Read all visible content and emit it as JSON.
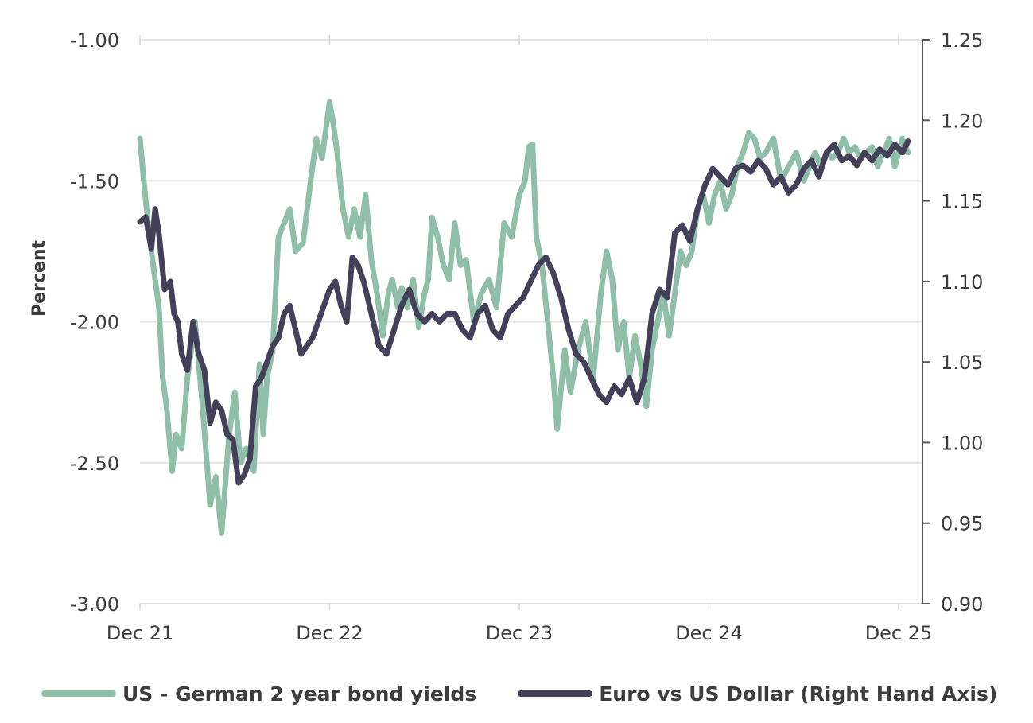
{
  "chart_data": {
    "type": "line",
    "title": "",
    "ylabel": "Percent",
    "ylabel_right": "",
    "xlabel": "",
    "x_ticks": [
      "Dec 21",
      "Dec 22",
      "Dec 23",
      "Dec 24",
      "Dec 25"
    ],
    "ylim_left": [
      -3.0,
      -1.0
    ],
    "ylim_right": [
      0.9,
      1.25
    ],
    "y_ticks_left": [
      "-1.00",
      "-1.50",
      "-2.00",
      "-2.50",
      "-3.00"
    ],
    "y_ticks_right": [
      "1.25",
      "1.20",
      "1.15",
      "1.10",
      "1.05",
      "1.00",
      "0.95",
      "0.90"
    ],
    "grid": true,
    "legend_position": "bottom",
    "x_domain": [
      0,
      4
    ],
    "series": [
      {
        "name": "US - German 2 year bond yields",
        "axis": "left",
        "color": "#8fbfa8",
        "x": [
          0.0,
          0.02,
          0.05,
          0.08,
          0.1,
          0.12,
          0.14,
          0.17,
          0.19,
          0.22,
          0.25,
          0.29,
          0.33,
          0.37,
          0.4,
          0.43,
          0.47,
          0.5,
          0.53,
          0.56,
          0.6,
          0.63,
          0.65,
          0.67,
          0.7,
          0.73,
          0.76,
          0.79,
          0.82,
          0.86,
          0.9,
          0.93,
          0.96,
          1.0,
          1.02,
          1.04,
          1.07,
          1.1,
          1.13,
          1.16,
          1.19,
          1.22,
          1.25,
          1.28,
          1.31,
          1.33,
          1.36,
          1.38,
          1.41,
          1.44,
          1.47,
          1.5,
          1.52,
          1.54,
          1.57,
          1.6,
          1.63,
          1.66,
          1.69,
          1.72,
          1.76,
          1.8,
          1.84,
          1.88,
          1.92,
          1.96,
          2.0,
          2.03,
          2.05,
          2.07,
          2.09,
          2.12,
          2.15,
          2.18,
          2.2,
          2.24,
          2.27,
          2.31,
          2.35,
          2.39,
          2.43,
          2.46,
          2.49,
          2.52,
          2.55,
          2.58,
          2.61,
          2.64,
          2.67,
          2.7,
          2.73,
          2.76,
          2.79,
          2.82,
          2.85,
          2.88,
          2.91,
          2.94,
          2.97,
          3.0,
          3.03,
          3.06,
          3.09,
          3.12,
          3.15,
          3.18,
          3.21,
          3.24,
          3.27,
          3.3,
          3.34,
          3.38,
          3.42,
          3.46,
          3.5,
          3.53,
          3.56,
          3.59,
          3.62,
          3.65,
          3.68,
          3.71,
          3.74,
          3.77,
          3.8,
          3.83,
          3.86,
          3.89,
          3.92,
          3.95,
          3.98,
          4.0,
          4.02,
          4.05
        ],
        "values": [
          -1.35,
          -1.5,
          -1.7,
          -1.85,
          -1.95,
          -2.2,
          -2.3,
          -2.53,
          -2.4,
          -2.45,
          -2.2,
          -2.0,
          -2.3,
          -2.65,
          -2.55,
          -2.75,
          -2.4,
          -2.25,
          -2.5,
          -2.45,
          -2.53,
          -2.15,
          -2.4,
          -2.2,
          -2.1,
          -1.7,
          -1.65,
          -1.6,
          -1.75,
          -1.72,
          -1.5,
          -1.35,
          -1.42,
          -1.22,
          -1.3,
          -1.4,
          -1.6,
          -1.7,
          -1.6,
          -1.7,
          -1.55,
          -1.78,
          -1.9,
          -2.05,
          -1.9,
          -1.85,
          -1.95,
          -1.88,
          -1.95,
          -1.85,
          -2.02,
          -1.9,
          -1.85,
          -1.63,
          -1.7,
          -1.8,
          -1.85,
          -1.65,
          -1.8,
          -1.78,
          -2.0,
          -1.9,
          -1.85,
          -1.95,
          -1.65,
          -1.7,
          -1.55,
          -1.5,
          -1.38,
          -1.37,
          -1.7,
          -1.8,
          -2.0,
          -2.2,
          -2.38,
          -2.1,
          -2.25,
          -2.1,
          -2.0,
          -2.2,
          -1.9,
          -1.75,
          -1.85,
          -2.1,
          -2.0,
          -2.2,
          -2.05,
          -2.15,
          -2.3,
          -2.1,
          -2.0,
          -1.9,
          -2.05,
          -1.9,
          -1.75,
          -1.8,
          -1.75,
          -1.6,
          -1.55,
          -1.65,
          -1.55,
          -1.5,
          -1.6,
          -1.55,
          -1.45,
          -1.4,
          -1.33,
          -1.35,
          -1.42,
          -1.4,
          -1.35,
          -1.5,
          -1.45,
          -1.4,
          -1.5,
          -1.45,
          -1.4,
          -1.45,
          -1.4,
          -1.42,
          -1.4,
          -1.35,
          -1.4,
          -1.38,
          -1.42,
          -1.4,
          -1.38,
          -1.45,
          -1.4,
          -1.35,
          -1.45,
          -1.4,
          -1.35,
          -1.4
        ]
      },
      {
        "name": "Euro vs US Dollar (Right Hand Axis)",
        "axis": "right",
        "color": "#44405a",
        "x": [
          0.0,
          0.03,
          0.06,
          0.08,
          0.1,
          0.13,
          0.16,
          0.18,
          0.2,
          0.22,
          0.25,
          0.28,
          0.31,
          0.34,
          0.37,
          0.4,
          0.43,
          0.46,
          0.49,
          0.52,
          0.55,
          0.58,
          0.61,
          0.64,
          0.67,
          0.7,
          0.73,
          0.76,
          0.79,
          0.82,
          0.85,
          0.88,
          0.91,
          0.94,
          0.97,
          1.0,
          1.03,
          1.06,
          1.09,
          1.12,
          1.15,
          1.18,
          1.22,
          1.26,
          1.3,
          1.34,
          1.38,
          1.42,
          1.46,
          1.5,
          1.54,
          1.58,
          1.62,
          1.66,
          1.7,
          1.74,
          1.78,
          1.82,
          1.86,
          1.9,
          1.94,
          1.98,
          2.02,
          2.06,
          2.1,
          2.14,
          2.18,
          2.22,
          2.26,
          2.3,
          2.34,
          2.38,
          2.42,
          2.46,
          2.5,
          2.54,
          2.58,
          2.62,
          2.66,
          2.7,
          2.74,
          2.78,
          2.82,
          2.86,
          2.9,
          2.94,
          2.98,
          3.02,
          3.06,
          3.1,
          3.14,
          3.18,
          3.22,
          3.26,
          3.3,
          3.34,
          3.38,
          3.42,
          3.46,
          3.5,
          3.54,
          3.58,
          3.62,
          3.66,
          3.7,
          3.74,
          3.78,
          3.82,
          3.86,
          3.9,
          3.94,
          3.98,
          4.02,
          4.05
        ],
        "values": [
          1.137,
          1.14,
          1.12,
          1.145,
          1.13,
          1.095,
          1.1,
          1.08,
          1.075,
          1.055,
          1.045,
          1.075,
          1.055,
          1.045,
          1.012,
          1.025,
          1.02,
          1.005,
          1.002,
          0.975,
          0.98,
          0.99,
          1.035,
          1.04,
          1.05,
          1.06,
          1.065,
          1.08,
          1.085,
          1.07,
          1.055,
          1.06,
          1.065,
          1.075,
          1.085,
          1.095,
          1.1,
          1.085,
          1.075,
          1.115,
          1.11,
          1.1,
          1.08,
          1.06,
          1.055,
          1.07,
          1.085,
          1.095,
          1.08,
          1.075,
          1.08,
          1.075,
          1.08,
          1.08,
          1.07,
          1.065,
          1.08,
          1.085,
          1.07,
          1.065,
          1.08,
          1.085,
          1.09,
          1.1,
          1.11,
          1.115,
          1.105,
          1.09,
          1.07,
          1.055,
          1.05,
          1.04,
          1.03,
          1.025,
          1.035,
          1.03,
          1.04,
          1.025,
          1.04,
          1.08,
          1.095,
          1.09,
          1.13,
          1.135,
          1.125,
          1.145,
          1.16,
          1.17,
          1.165,
          1.16,
          1.17,
          1.172,
          1.168,
          1.175,
          1.17,
          1.16,
          1.165,
          1.155,
          1.16,
          1.17,
          1.175,
          1.165,
          1.18,
          1.185,
          1.175,
          1.178,
          1.172,
          1.18,
          1.175,
          1.182,
          1.178,
          1.185,
          1.18,
          1.187
        ]
      }
    ]
  }
}
